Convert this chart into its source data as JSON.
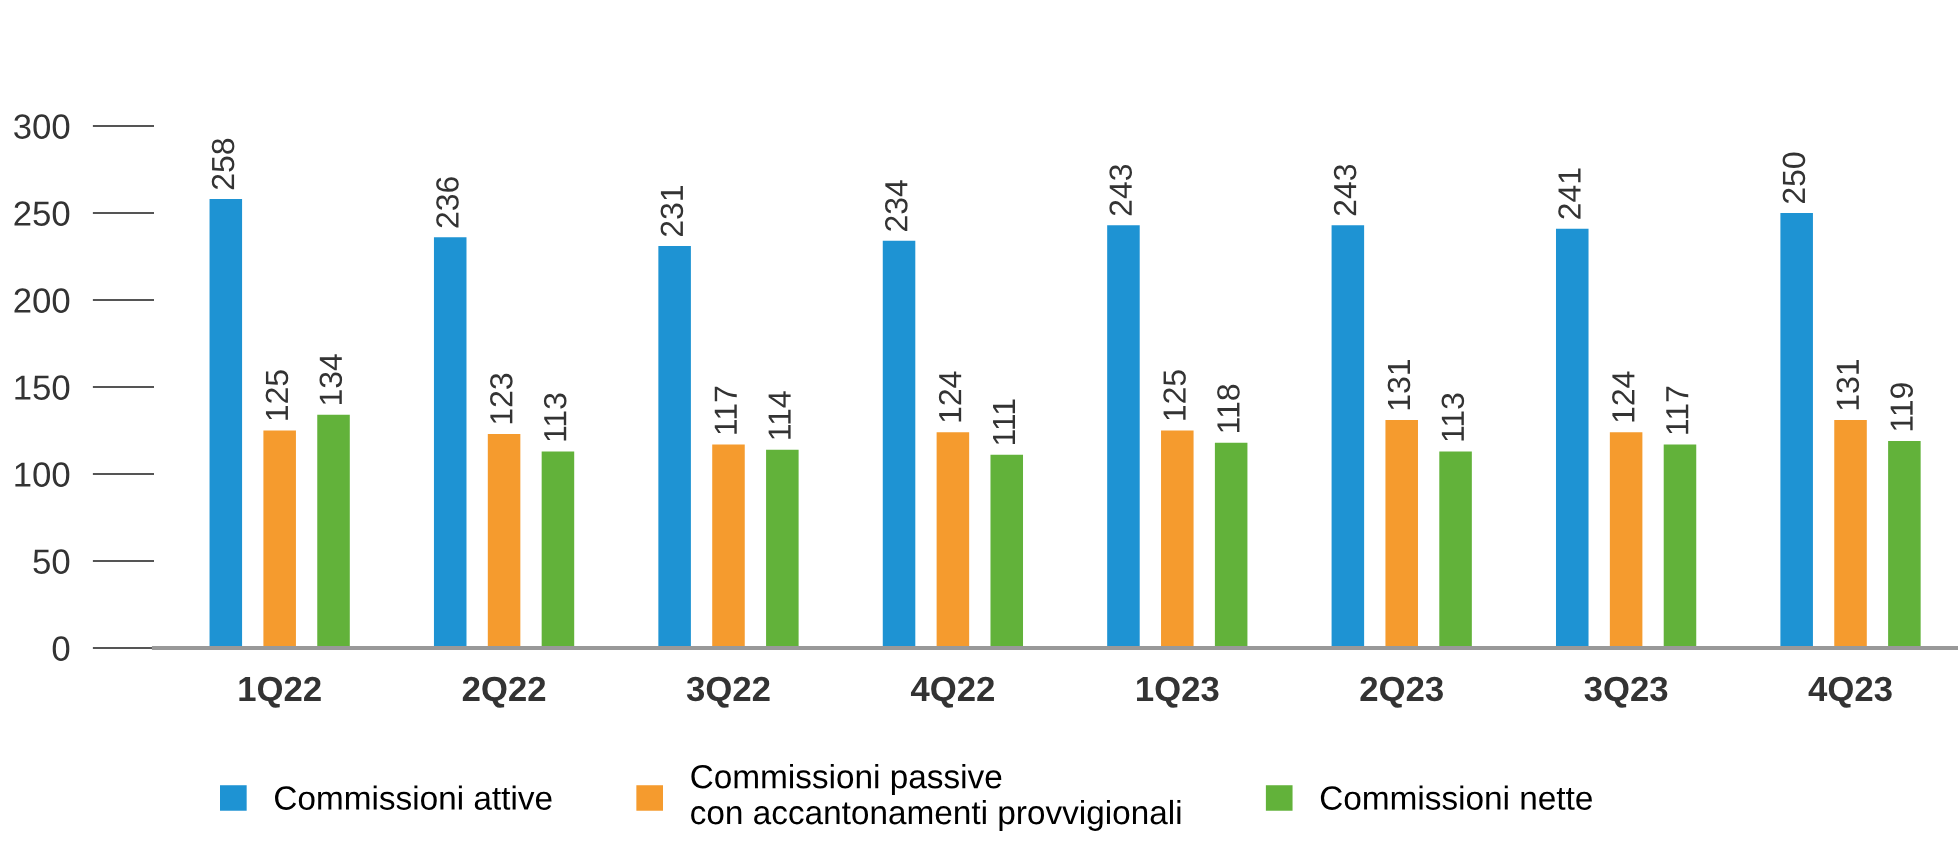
{
  "chart_data": {
    "type": "bar",
    "categories": [
      "1Q22",
      "2Q22",
      "3Q22",
      "4Q22",
      "1Q23",
      "2Q23",
      "3Q23",
      "4Q23"
    ],
    "series": [
      {
        "name": "Commissioni attive",
        "color": "#1e93d3",
        "values": [
          258,
          236,
          231,
          234,
          243,
          243,
          241,
          250
        ],
        "value_labels": [
          "258",
          "236",
          "231",
          "234",
          "243",
          "243",
          "241",
          "250"
        ]
      },
      {
        "name": "Commissioni passive\ncon accantonamenti provvigionali",
        "color": "#f59b2e",
        "values": [
          125,
          123,
          117,
          124,
          125,
          131,
          124,
          131
        ],
        "value_labels": [
          "125",
          "123",
          "117",
          "124",
          "125",
          "131",
          "124",
          "131"
        ]
      },
      {
        "name": "Commissioni nette",
        "color": "#62b23a",
        "values": [
          134,
          113,
          114,
          111,
          118,
          113,
          117,
          119
        ],
        "value_labels": [
          "134",
          "113",
          "114",
          "111",
          "118",
          "113",
          "117",
          "119"
        ]
      }
    ],
    "ylim": [
      0,
      300
    ],
    "yticks": [
      0,
      50,
      100,
      150,
      200,
      250,
      300
    ],
    "grid": false,
    "legend": "bottom"
  }
}
